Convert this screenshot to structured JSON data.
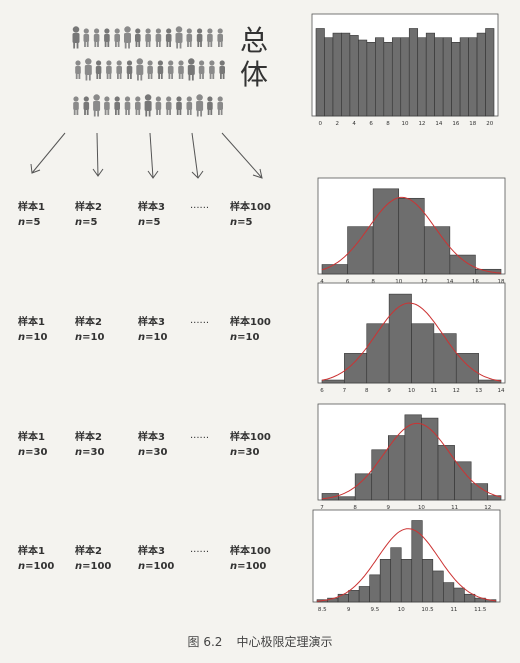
{
  "population_label": "总\n体",
  "population_chars": [
    "总",
    "体"
  ],
  "rows": [
    {
      "samples": [
        {
          "label": "样本1",
          "n_eq": "n",
          "val": "=5"
        },
        {
          "label": "样本2",
          "n_eq": "n",
          "val": "=5"
        },
        {
          "label": "样本3",
          "n_eq": "n",
          "val": "=5"
        },
        {
          "label": "样本100",
          "n_eq": "n",
          "val": "=5"
        }
      ],
      "dots": "......"
    },
    {
      "samples": [
        {
          "label": "样本1",
          "n_eq": "n",
          "val": "=10"
        },
        {
          "label": "样本2",
          "n_eq": "n",
          "val": "=10"
        },
        {
          "label": "样本3",
          "n_eq": "n",
          "val": "=10"
        },
        {
          "label": "样本100",
          "n_eq": "n",
          "val": "=10"
        }
      ],
      "dots": "......"
    },
    {
      "samples": [
        {
          "label": "样本1",
          "n_eq": "n",
          "val": "=30"
        },
        {
          "label": "样本2",
          "n_eq": "n",
          "val": "=30"
        },
        {
          "label": "样本3",
          "n_eq": "n",
          "val": "=30"
        },
        {
          "label": "样本100",
          "n_eq": "n",
          "val": "=30"
        }
      ],
      "dots": "......"
    },
    {
      "samples": [
        {
          "label": "样本1",
          "n_eq": "n",
          "val": "=100"
        },
        {
          "label": "样本2",
          "n_eq": "n",
          "val": "=100"
        },
        {
          "label": "样本3",
          "n_eq": "n",
          "val": "=100"
        },
        {
          "label": "样本100",
          "n_eq": "n",
          "val": "=100"
        }
      ],
      "dots": "......"
    }
  ],
  "caption": {
    "number": "图 6.2",
    "title": "中心极限定理演示"
  },
  "colors": {
    "bar": "#6e6e6e",
    "curve": "#cc3333",
    "person": "#8a8a8a"
  },
  "chart_data": [
    {
      "type": "bar",
      "title": "",
      "x_ticks": [
        "0",
        "2",
        "4",
        "6",
        "8",
        "10",
        "12",
        "14",
        "16",
        "18",
        "20"
      ],
      "x_range": [
        0,
        20
      ],
      "values": [
        19,
        17,
        18,
        18,
        17.5,
        16.5,
        16,
        17,
        16,
        17,
        17,
        19,
        17,
        18,
        17,
        17,
        16,
        17,
        17,
        18,
        19
      ]
    },
    {
      "type": "histogram",
      "x_ticks": [
        "4",
        "6",
        "8",
        "10",
        "12",
        "14",
        "16",
        "18"
      ],
      "x_range": [
        4,
        18
      ],
      "bins": [
        [
          4,
          6,
          1
        ],
        [
          6,
          8,
          5
        ],
        [
          8,
          10,
          9
        ],
        [
          10,
          12,
          8
        ],
        [
          12,
          14,
          5
        ],
        [
          14,
          16,
          2
        ],
        [
          16,
          18,
          0.5
        ]
      ],
      "curve": true
    },
    {
      "type": "histogram",
      "x_ticks": [
        "6",
        "7",
        "8",
        "9",
        "10",
        "11",
        "12",
        "13",
        "14"
      ],
      "x_range": [
        6,
        14
      ],
      "bins": [
        [
          6,
          7,
          0.3
        ],
        [
          7,
          8,
          3
        ],
        [
          8,
          9,
          6
        ],
        [
          9,
          10,
          9
        ],
        [
          10,
          11,
          6
        ],
        [
          11,
          12,
          5
        ],
        [
          12,
          13,
          3
        ],
        [
          13,
          14,
          0.3
        ]
      ],
      "curve": true
    },
    {
      "type": "histogram",
      "x_ticks": [
        "7",
        "8",
        "9",
        "10",
        "11",
        "12"
      ],
      "x_range": [
        7,
        12.4
      ],
      "bins": [
        [
          7,
          7.5,
          0.6
        ],
        [
          7.5,
          8,
          0.3
        ],
        [
          8,
          8.5,
          2.4
        ],
        [
          8.5,
          9,
          4.6
        ],
        [
          9,
          9.5,
          5.9
        ],
        [
          9.5,
          10,
          7.8
        ],
        [
          10,
          10.5,
          7.5
        ],
        [
          10.5,
          11,
          5
        ],
        [
          11,
          11.5,
          3.5
        ],
        [
          11.5,
          12,
          1.5
        ],
        [
          12,
          12.4,
          0.4
        ]
      ],
      "curve": true
    },
    {
      "type": "histogram",
      "x_ticks": [
        "8.5",
        "9",
        "9.5",
        "10",
        "10.5",
        "11",
        "11.5"
      ],
      "x_range": [
        8.4,
        11.8
      ],
      "bins": [
        [
          8.4,
          8.6,
          0.3
        ],
        [
          8.6,
          8.8,
          0.5
        ],
        [
          8.8,
          9,
          1
        ],
        [
          9,
          9.2,
          1.5
        ],
        [
          9.2,
          9.4,
          2
        ],
        [
          9.4,
          9.6,
          3.5
        ],
        [
          9.6,
          9.8,
          5.5
        ],
        [
          9.8,
          10,
          7
        ],
        [
          10,
          10.2,
          5.5
        ],
        [
          10.2,
          10.4,
          10.5
        ],
        [
          10.4,
          10.6,
          5.5
        ],
        [
          10.6,
          10.8,
          4
        ],
        [
          10.8,
          11,
          2.5
        ],
        [
          11,
          11.2,
          1.8
        ],
        [
          11.2,
          11.4,
          1
        ],
        [
          11.4,
          11.6,
          0.5
        ],
        [
          11.6,
          11.8,
          0.3
        ]
      ],
      "curve": true
    }
  ]
}
